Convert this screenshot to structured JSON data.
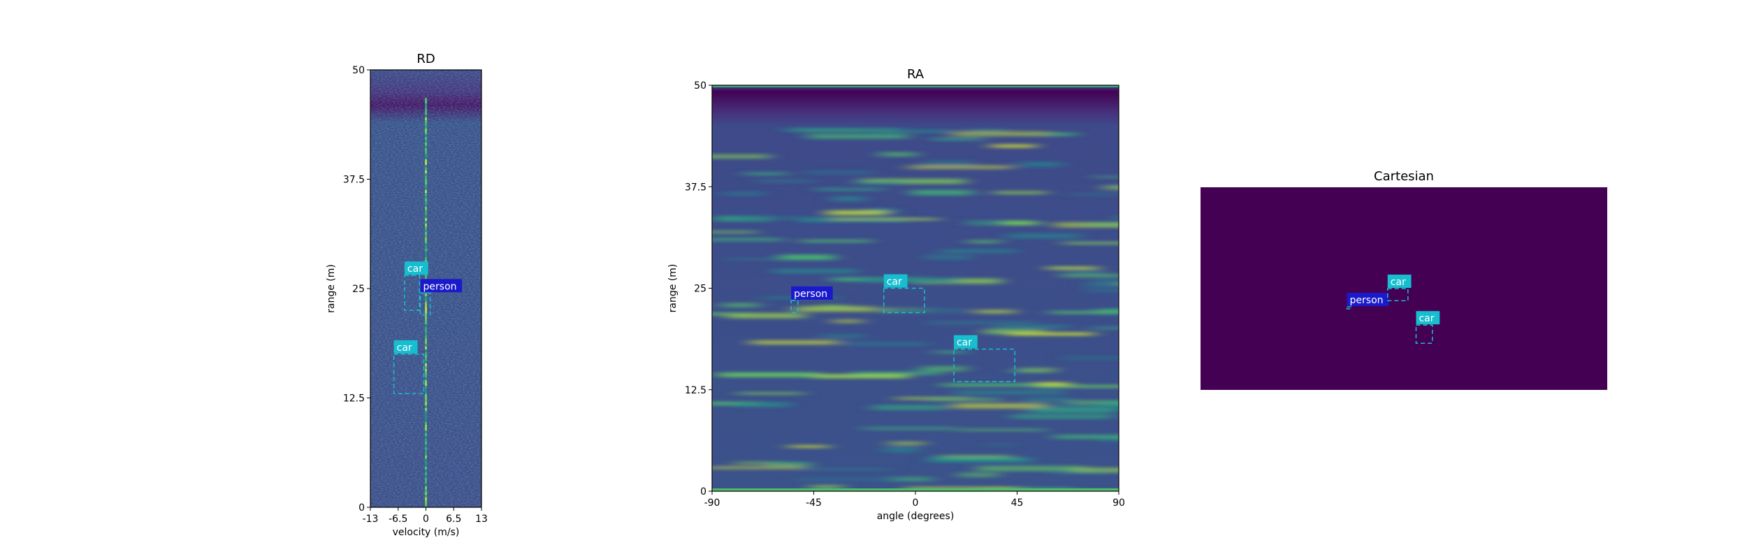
{
  "figure": {
    "panels": [
      {
        "id": "rd",
        "title": "RD",
        "xlabel": "velocity (m/s)",
        "ylabel": "range (m)",
        "xlim": [
          -13,
          13
        ],
        "ylim": [
          0,
          50
        ],
        "xticks": [
          -13,
          -6.5,
          0,
          6.5,
          13
        ],
        "xtick_labels": [
          "-13",
          "-6.5",
          "0",
          "6.5",
          "13"
        ],
        "yticks": [
          0,
          12.5,
          25,
          37.5,
          50
        ],
        "ytick_labels": [
          "0",
          "12.5",
          "25",
          "37.5",
          "50"
        ]
      },
      {
        "id": "ra",
        "title": "RA",
        "xlabel": "angle (degrees)",
        "ylabel": "range (m)",
        "xlim": [
          -90,
          90
        ],
        "ylim": [
          0,
          50
        ],
        "xticks": [
          -90,
          -45,
          0,
          45,
          90
        ],
        "xtick_labels": [
          "-90",
          "-45",
          "0",
          "45",
          "90"
        ],
        "yticks": [
          0,
          12.5,
          25,
          37.5,
          50
        ],
        "ytick_labels": [
          "0",
          "12.5",
          "25",
          "37.5",
          "50"
        ]
      },
      {
        "id": "cartesian",
        "title": "Cartesian",
        "xlabel": "",
        "ylabel": "",
        "xlim": [
          0,
          1
        ],
        "ylim": [
          0,
          1
        ]
      }
    ]
  },
  "chart_data": [
    {
      "type": "heatmap",
      "title": "RD",
      "xlabel": "velocity (m/s)",
      "ylabel": "range (m)",
      "xlim": [
        -13,
        13
      ],
      "ylim": [
        0,
        50
      ],
      "colormap": "viridis",
      "grid": false,
      "detections": [
        {
          "label": "car",
          "x0": -5.0,
          "x1": -1.5,
          "y0": 22.5,
          "y1": 26.5
        },
        {
          "label": "person",
          "x0": -1.3,
          "x1": 1.0,
          "y0": 22.0,
          "y1": 24.5
        },
        {
          "label": "car",
          "x0": -7.5,
          "x1": -0.5,
          "y0": 13.0,
          "y1": 17.5
        }
      ]
    },
    {
      "type": "heatmap",
      "title": "RA",
      "xlabel": "angle (degrees)",
      "ylabel": "range (m)",
      "xlim": [
        -90,
        90
      ],
      "ylim": [
        0,
        50
      ],
      "colormap": "viridis",
      "grid": false,
      "detections": [
        {
          "label": "person",
          "x0": -55,
          "x1": -52,
          "y0": 22.0,
          "y1": 23.5
        },
        {
          "label": "car",
          "x0": -14,
          "x1": 4,
          "y0": 22.0,
          "y1": 25.0
        },
        {
          "label": "car",
          "x0": 17,
          "x1": 44,
          "y0": 13.5,
          "y1": 17.5
        }
      ]
    },
    {
      "type": "heatmap",
      "title": "Cartesian",
      "xlim": [
        0,
        1
      ],
      "ylim": [
        0,
        1
      ],
      "colormap": "viridis",
      "background_color": "#440154",
      "detections": [
        {
          "label": "person",
          "x0": 0.36,
          "x1": 0.37,
          "y0": 0.4,
          "y1": 0.41
        },
        {
          "label": "car",
          "x0": 0.46,
          "x1": 0.51,
          "y0": 0.44,
          "y1": 0.5
        },
        {
          "label": "car",
          "x0": 0.53,
          "x1": 0.57,
          "y0": 0.23,
          "y1": 0.32
        }
      ]
    }
  ],
  "colors": {
    "car_box": "#17becf",
    "car_label_bg": "#17becf",
    "person_label_bg": "#1a1acc",
    "heatmap_low": "#440154",
    "heatmap_mid": "#3b528b",
    "heatmap_high": "#fde725"
  }
}
